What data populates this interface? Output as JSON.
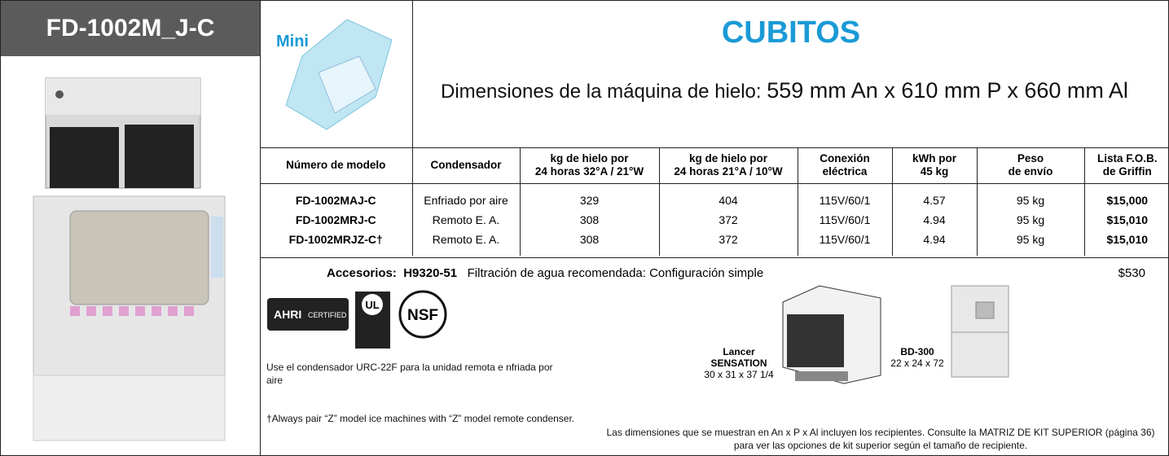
{
  "header": {
    "model": "FD-1002M_J-C"
  },
  "logo": {
    "text": "Mini"
  },
  "title": "CUBITOS",
  "dimensions": {
    "label": "Dimensiones de la máquina de hielo:",
    "value": "559 mm An x 610 mm P x 660 mm Al"
  },
  "table": {
    "columns": [
      [
        "Número de modelo"
      ],
      [
        "Condensador"
      ],
      [
        "kg de hielo por",
        "24 horas 32°A / 21°W"
      ],
      [
        "kg de hielo por",
        "24 horas 21°A / 10°W"
      ],
      [
        "Conexión",
        "eléctrica"
      ],
      [
        "kWh por",
        "45 kg"
      ],
      [
        "Peso",
        "de envío"
      ],
      [
        "Lista F.O.B.",
        "de Griffin"
      ]
    ],
    "rows": [
      [
        "FD-1002MAJ-C",
        "Enfriado por aire",
        "329",
        "404",
        "115V/60/1",
        "4.57",
        "95 kg",
        "$15,000"
      ],
      [
        "FD-1002MRJ-C",
        "Remoto E. A.",
        "308",
        "372",
        "115V/60/1",
        "4.94",
        "95 kg",
        "$15,010"
      ],
      [
        "FD-1002MRJZ-C†",
        "Remoto E. A.",
        "308",
        "372",
        "115V/60/1",
        "4.94",
        "95 kg",
        "$15,010"
      ]
    ]
  },
  "accessories": {
    "label": "Accesorios:",
    "code": "H9320-51",
    "description": "Filtración de agua recomendada: Configuración simple",
    "price": "$530"
  },
  "certifications": {
    "ahri": "AHRI",
    "ahri_sub": "CERTIFIED",
    "ul": "UL",
    "nsf": "NSF"
  },
  "notes": [
    "Use el condensador URC-22F para la unidad remota e nfriada por aire",
    "†Always pair “Z” model ice machines with “Z” model remote condenser."
  ],
  "bins": [
    {
      "name": "Lancer",
      "sub": "SENSATION",
      "dims": "30 x 31 x 37 1/4"
    },
    {
      "name": "BD-300",
      "dims": "22 x 24 x 72"
    }
  ],
  "footnote": "Las dimensiones que se muestran en An x P x Al incluyen los recipientes. Consulte la MATRIZ DE KIT SUPERIOR (página 36) para ver las opciones de kit superior según el tamaño de recipiente."
}
